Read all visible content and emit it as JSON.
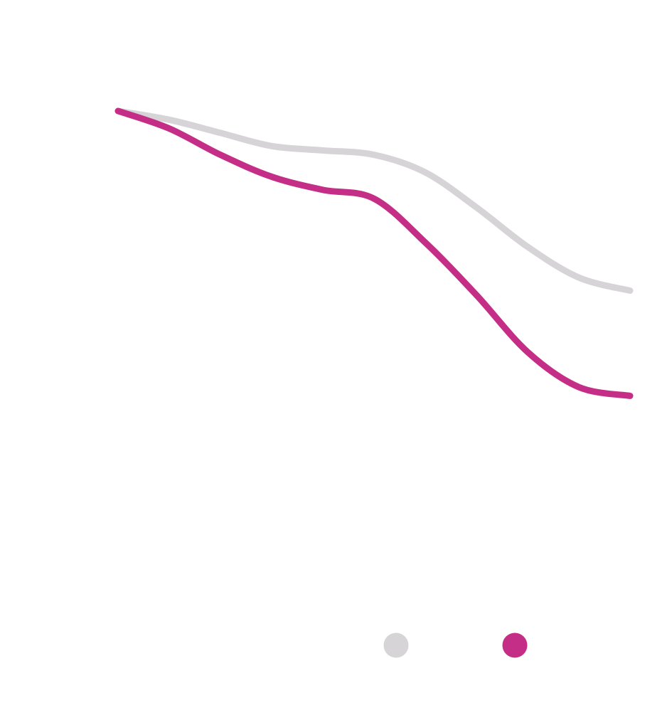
{
  "chart_data": {
    "type": "line",
    "title": "",
    "xlabel": "",
    "ylabel": "",
    "grid": false,
    "legend_position": "bottom",
    "x": [
      0,
      1,
      2,
      3,
      4,
      5,
      6,
      7,
      8,
      9,
      10
    ],
    "xlim": [
      0,
      10
    ],
    "ylim": [
      0,
      1
    ],
    "series": [
      {
        "color": "#d6d4d6",
        "values": [
          1.0,
          0.98,
          0.95,
          0.92,
          0.91,
          0.9,
          0.86,
          0.78,
          0.69,
          0.62,
          0.59
        ]
      },
      {
        "color": "#c52e86",
        "values": [
          1.0,
          0.96,
          0.9,
          0.85,
          0.82,
          0.8,
          0.7,
          0.58,
          0.45,
          0.37,
          0.35
        ]
      }
    ],
    "legend": [
      {
        "color": "#d6d4d6"
      },
      {
        "color": "#c52e86"
      }
    ]
  }
}
